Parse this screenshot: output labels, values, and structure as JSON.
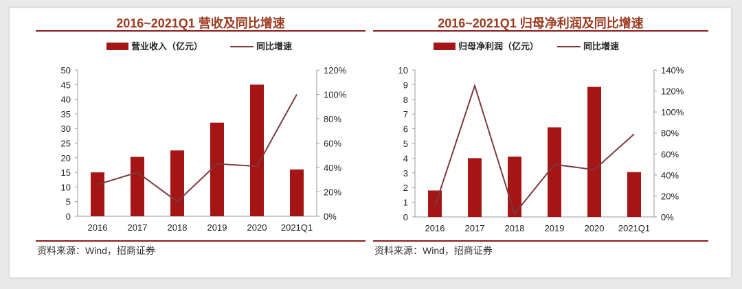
{
  "colors": {
    "bar": "#a51515",
    "line": "#7b3a3f",
    "title": "#9b3a1e",
    "rule": "#8b1a1a"
  },
  "chart_data": [
    {
      "type": "bar+line",
      "title": "2016~2021Q1 营收及同比增速",
      "categories": [
        "2016",
        "2017",
        "2018",
        "2019",
        "2020",
        "2021Q1"
      ],
      "series": [
        {
          "name": "营业收入（亿元）",
          "type": "bar",
          "axis": "left",
          "values": [
            15,
            20.3,
            22.5,
            32,
            45,
            16
          ]
        },
        {
          "name": "同比增速",
          "type": "line",
          "axis": "right",
          "values": [
            26,
            36,
            12,
            43,
            41,
            100
          ]
        }
      ],
      "ylim": [
        0,
        50
      ],
      "yticks": [
        "0",
        "5",
        "10",
        "15",
        "20",
        "25",
        "30",
        "35",
        "40",
        "45",
        "50"
      ],
      "y2lim": [
        0,
        120
      ],
      "y2ticks": [
        "0%",
        "20%",
        "40%",
        "60%",
        "80%",
        "100%",
        "120%"
      ],
      "legend": "top",
      "grid": false,
      "source": "资料来源：Wind，招商证券"
    },
    {
      "type": "bar+line",
      "title": "2016~2021Q1 归母净利润及同比增速",
      "categories": [
        "2016",
        "2017",
        "2018",
        "2019",
        "2020",
        "2021Q1"
      ],
      "series": [
        {
          "name": "归母净利润（亿元）",
          "type": "bar",
          "axis": "left",
          "values": [
            1.8,
            4.0,
            4.1,
            6.1,
            8.85,
            3.05
          ]
        },
        {
          "name": "同比增速",
          "type": "line",
          "axis": "right",
          "values": [
            10,
            125,
            3,
            50,
            45,
            79
          ]
        }
      ],
      "ylim": [
        0,
        10
      ],
      "yticks": [
        "0",
        "1",
        "2",
        "3",
        "4",
        "5",
        "6",
        "7",
        "8",
        "9",
        "10"
      ],
      "y2lim": [
        0,
        140
      ],
      "y2ticks": [
        "0%",
        "20%",
        "40%",
        "60%",
        "80%",
        "100%",
        "120%",
        "140%"
      ],
      "legend": "top",
      "grid": false,
      "source": "资料来源：Wind，招商证券"
    }
  ]
}
